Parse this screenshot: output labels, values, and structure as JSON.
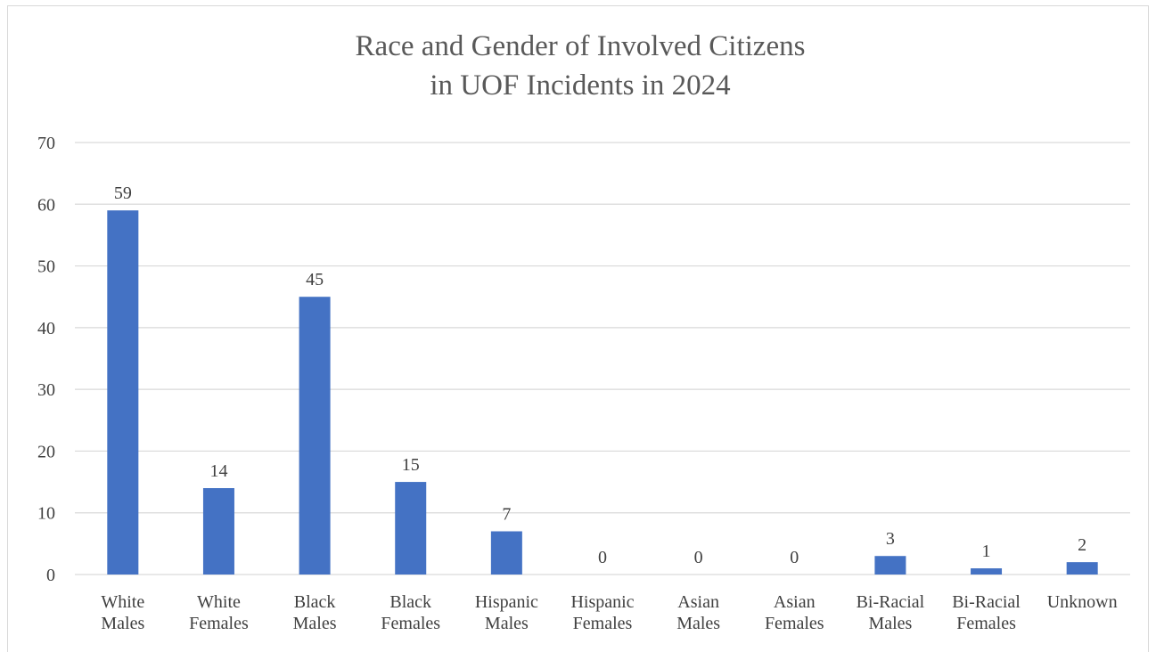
{
  "chart_data": {
    "type": "bar",
    "title_lines": [
      "Race and Gender of Involved Citizens",
      "in UOF Incidents in 2024"
    ],
    "categories": [
      [
        "White",
        "Males"
      ],
      [
        "White",
        "Females"
      ],
      [
        "Black",
        "Males"
      ],
      [
        "Black",
        "Females"
      ],
      [
        "Hispanic",
        "Males"
      ],
      [
        "Hispanic",
        "Females"
      ],
      [
        "Asian",
        "Males"
      ],
      [
        "Asian",
        "Females"
      ],
      [
        "Bi-Racial",
        "Males"
      ],
      [
        "Bi-Racial",
        "Females"
      ],
      [
        "Unknown"
      ]
    ],
    "values": [
      59,
      14,
      45,
      15,
      7,
      0,
      0,
      0,
      3,
      1,
      2
    ],
    "data_labels": [
      "59",
      "14",
      "45",
      "15",
      "7",
      "0",
      "0",
      "0",
      "3",
      "1",
      "2"
    ],
    "ylim": [
      0,
      70
    ],
    "yticks": [
      "0",
      "10",
      "20",
      "30",
      "40",
      "50",
      "60",
      "70"
    ],
    "grid": true,
    "legend": "none",
    "bar_color": "#4472c4",
    "grid_color": "#d9d9d9"
  }
}
